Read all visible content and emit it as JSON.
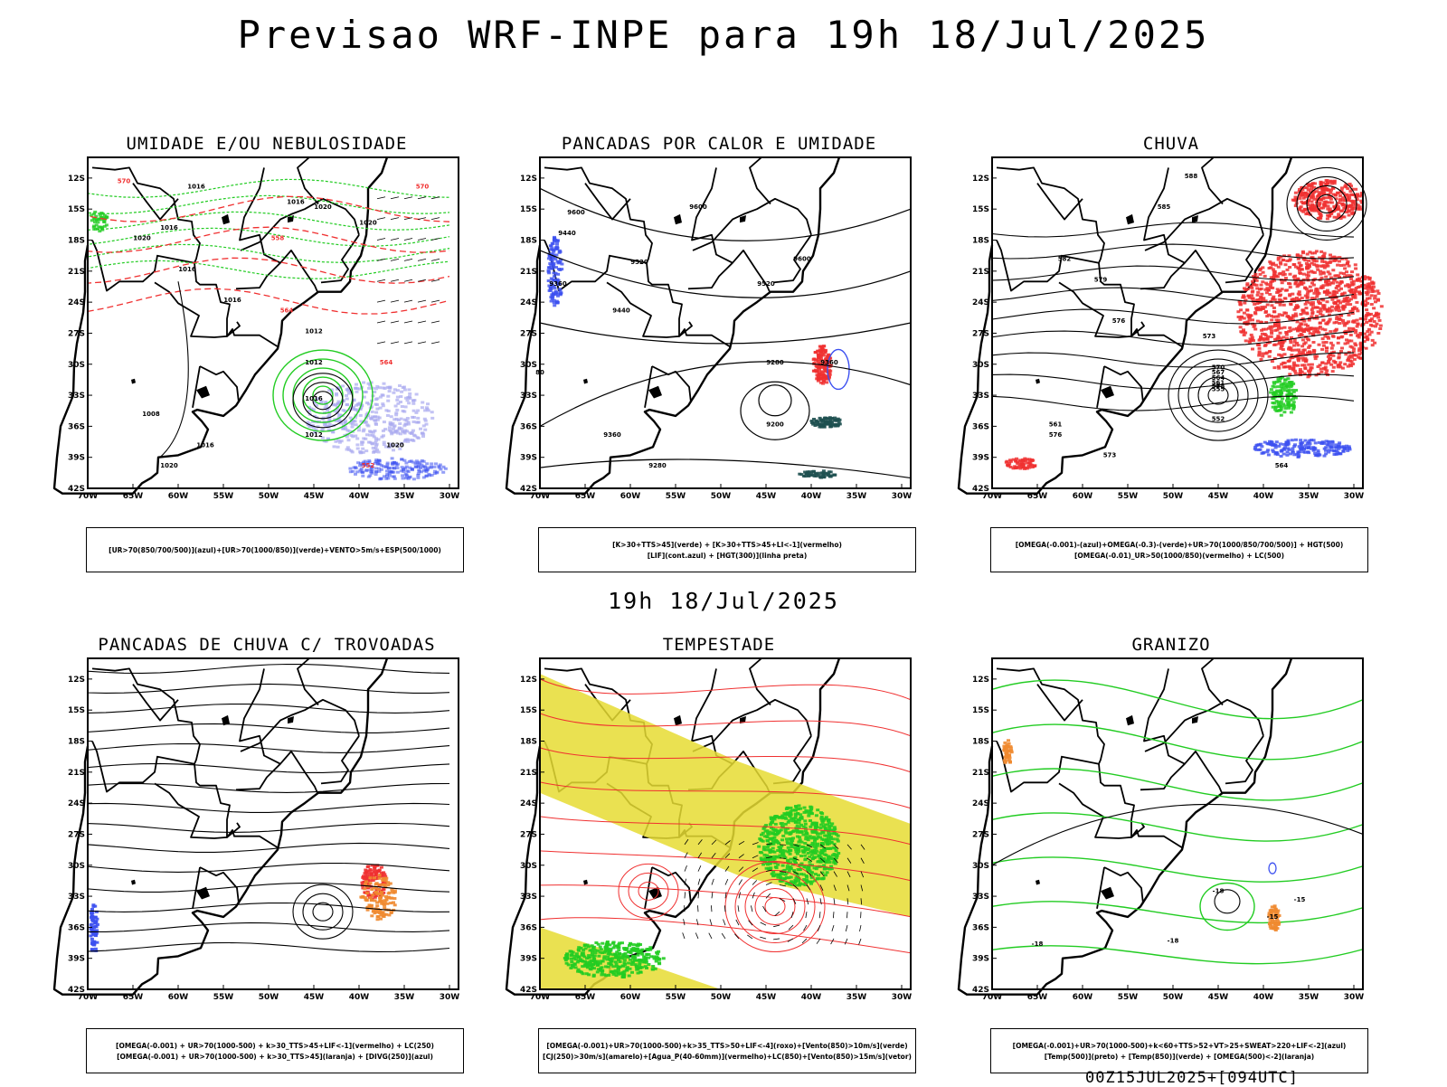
{
  "title": "Previsao WRF-INPE  para 19h 18/Jul/2025",
  "subtitle": "19h 18/Jul/2025",
  "footer": "00Z15JUL2025+[094UTC]",
  "axes": {
    "lat_labels": [
      "12S",
      "15S",
      "18S",
      "21S",
      "24S",
      "27S",
      "30S",
      "33S",
      "36S",
      "39S",
      "42S"
    ],
    "lon_labels": [
      "70W",
      "65W",
      "60W",
      "55W",
      "50W",
      "45W",
      "40W",
      "35W",
      "30W"
    ]
  },
  "colors": {
    "blue": "#3c50f0",
    "green": "#22cc22",
    "red": "#f03030",
    "yellow": "#e6dc32",
    "orange": "#f08a30",
    "lavender": "#aaaaf0",
    "darkteal": "#1e5050",
    "frame": "#000000"
  },
  "panels": [
    {
      "title": "UMIDADE E/OU NEBULOSIDADE",
      "legend": [
        "[UR>70(850/700/500)](azul)+[UR>70(1000/850)](verde)+VENTO>5m/s+ESP(500/1000)"
      ],
      "isolines": [
        "1016",
        "1016",
        "1020",
        "1020",
        "1016",
        "1020",
        "1016",
        "1016",
        "1012",
        "1008",
        "1012",
        "1016",
        "1012",
        "1020",
        "1016",
        "1020",
        "570",
        "564",
        "558",
        "570",
        "552",
        "564"
      ]
    },
    {
      "title": "PANCADAS POR CALOR E UMIDADE",
      "legend": [
        "[K>30+TTS>45](verde) + [K>30+TTS>45+LI<-1](vermelho)",
        "[LIF](cont.azul) + [HGT(300)](linha preta)"
      ],
      "isolines": [
        "9600",
        "9600",
        "9600",
        "9520",
        "9440",
        "9520",
        "9360",
        "9440",
        "9280",
        "9360",
        "9200",
        "9360",
        "9280",
        "80"
      ]
    },
    {
      "title": "CHUVA",
      "legend": [
        "[OMEGA(-0.001)-(azul)+OMEGA(-0.3)-(verde)+UR>70(1000/850/700/500)] + HGT(500)",
        "[OMEGA(-0.01)_UR>50(1000/850)(vermelho) + LC(500)"
      ],
      "isolines": [
        "588",
        "585",
        "582",
        "579",
        "576",
        "573",
        "570",
        "567",
        "564",
        "561",
        "558",
        "555",
        "552",
        "564",
        "561",
        "576",
        "573"
      ]
    },
    {
      "title": "PANCADAS DE CHUVA C/ TROVOADAS",
      "legend": [
        "[OMEGA(-0.001) + UR>70(1000-500) + k>30_TTS>45+LIF<-1](vermelho) + LC(250)",
        "[OMEGA(-0.001) + UR>70(1000-500) + k>30_TTS>45](laranja) + [DIVG(250)](azul)"
      ],
      "isolines": []
    },
    {
      "title": "TEMPESTADE",
      "legend": [
        "[OMEGA(-0.001)+UR>70(1000-500)+k>35_TTS>50+LIF<-4](roxo)+[Vento(850)>10m/s](verde)",
        "[CJ(250)>30m/s](amarelo)+[Agua_P(40-60mm)](vermelho)+LC(850)+[Vento(850)>15m/s](vetor)"
      ],
      "isolines": []
    },
    {
      "title": "GRANIZO",
      "legend": [
        "[OMEGA(-0.001)+UR>70(1000-500)+k<60+TTS>52+VT>25+SWEAT>220+LIF<-2](azul)",
        "[Temp(500)](preto) + [Temp(850)](verde) + [OMEGA(500)<-2](laranja)"
      ],
      "isolines": [
        "-18",
        "-18",
        "-15",
        "-15",
        "-18"
      ]
    }
  ]
}
